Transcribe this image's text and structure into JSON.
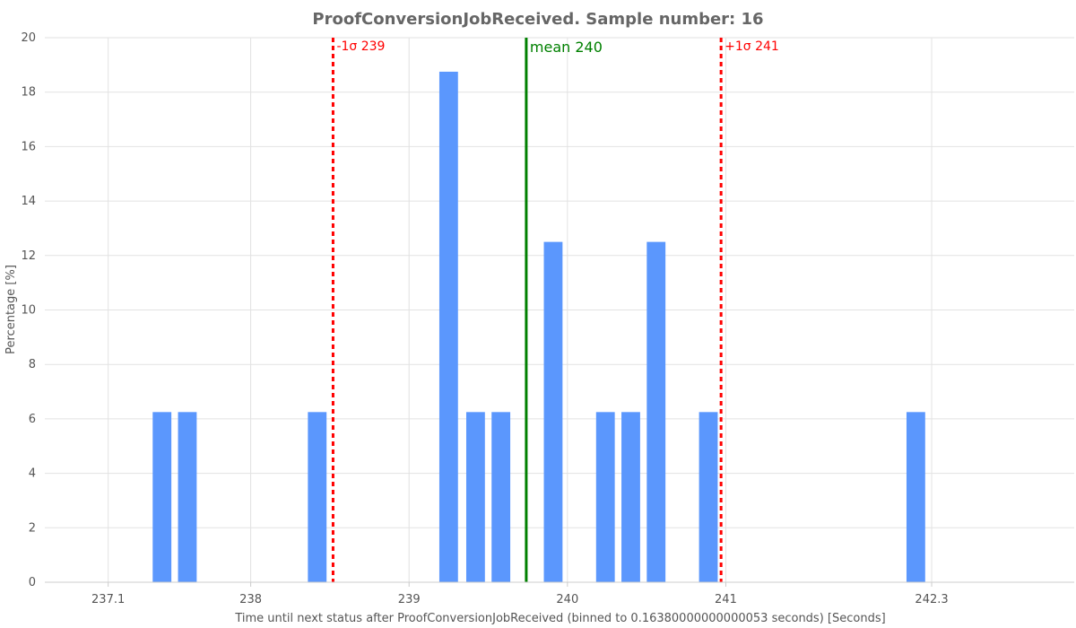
{
  "chart_data": {
    "type": "bar",
    "title": "ProofConversionJobReceived. Sample number: 16",
    "xlabel": "Time until next status after ProofConversionJobReceived (binned to 0.16380000000000053 seconds) [Seconds]",
    "ylabel": "Percentage [%]",
    "ylim": [
      0,
      20
    ],
    "xlim": [
      236.7,
      243.2
    ],
    "y_ticks": [
      0,
      2,
      4,
      6,
      8,
      10,
      12,
      14,
      16,
      18,
      20
    ],
    "x_ticks": [
      {
        "value": 237.1,
        "label": "237.1"
      },
      {
        "value": 238.0,
        "label": "238"
      },
      {
        "value": 239.0,
        "label": "239"
      },
      {
        "value": 240.0,
        "label": "240"
      },
      {
        "value": 241.0,
        "label": "241"
      },
      {
        "value": 242.3,
        "label": "242.3"
      }
    ],
    "bin_width": 0.1638,
    "bars": [
      {
        "x": 237.44,
        "value": 6.25
      },
      {
        "x": 237.6,
        "value": 6.25
      },
      {
        "x": 238.42,
        "value": 6.25
      },
      {
        "x": 239.25,
        "value": 18.75
      },
      {
        "x": 239.42,
        "value": 6.25
      },
      {
        "x": 239.58,
        "value": 6.25
      },
      {
        "x": 239.91,
        "value": 12.5
      },
      {
        "x": 240.24,
        "value": 6.25
      },
      {
        "x": 240.4,
        "value": 6.25
      },
      {
        "x": 240.56,
        "value": 12.5
      },
      {
        "x": 240.89,
        "value": 6.25
      },
      {
        "x": 242.2,
        "value": 6.25
      }
    ],
    "bar_color": "#5b97fd",
    "annotations": [
      {
        "name": "minus-sigma",
        "x": 238.52,
        "label": "-1σ 239",
        "color": "#ff0000",
        "style": "dotted"
      },
      {
        "name": "mean",
        "x": 239.74,
        "label": "mean 240",
        "color": "#008000",
        "style": "solid"
      },
      {
        "name": "plus-sigma",
        "x": 240.97,
        "label": "+1σ 241",
        "color": "#ff0000",
        "style": "dotted"
      }
    ],
    "grid": true
  }
}
